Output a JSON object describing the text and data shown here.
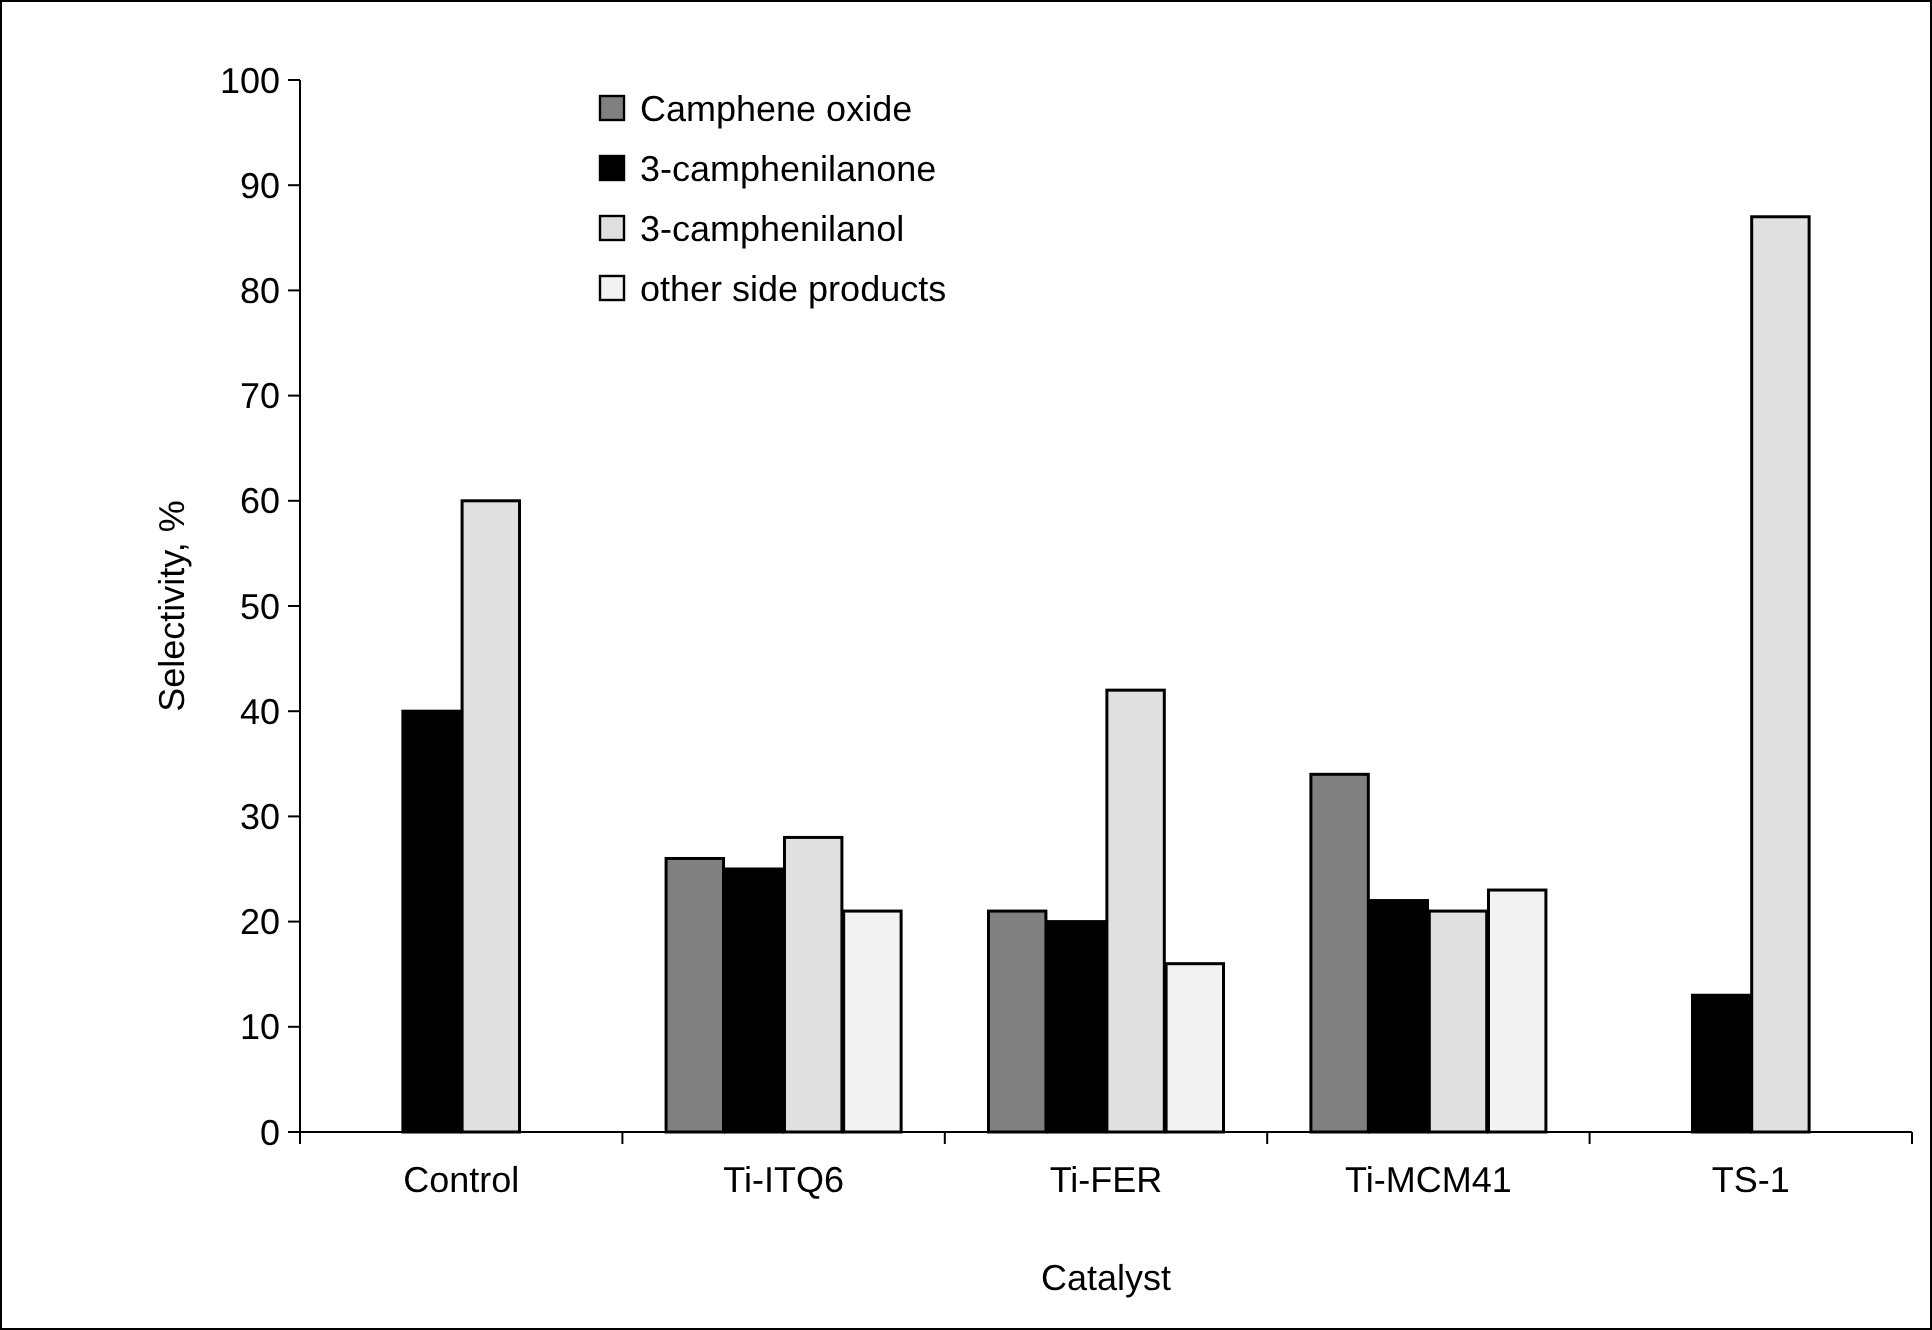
{
  "chart_data": {
    "type": "bar",
    "xlabel": "Catalyst",
    "ylabel": "Selectivity, %",
    "categories": [
      "Control",
      "Ti-ITQ6",
      "Ti-FER",
      "Ti-MCM41",
      "TS-1"
    ],
    "series": [
      {
        "name": "Camphene oxide",
        "color": "#808080",
        "values": [
          0,
          26,
          21,
          34,
          0
        ]
      },
      {
        "name": "3-camphenilanone",
        "color": "#000000",
        "values": [
          40,
          25,
          20,
          22,
          13
        ]
      },
      {
        "name": "3-camphenilanol",
        "color": "#e0e0e0",
        "values": [
          60,
          28,
          42,
          21,
          87
        ]
      },
      {
        "name": "other side products",
        "color": "#f2f2f2",
        "values": [
          0,
          21,
          16,
          23,
          0
        ]
      }
    ],
    "ylim": [
      0,
      100
    ],
    "yticks": [
      0,
      10,
      20,
      30,
      40,
      50,
      60,
      70,
      80,
      90,
      100
    ],
    "grid": false,
    "legend": "top"
  }
}
